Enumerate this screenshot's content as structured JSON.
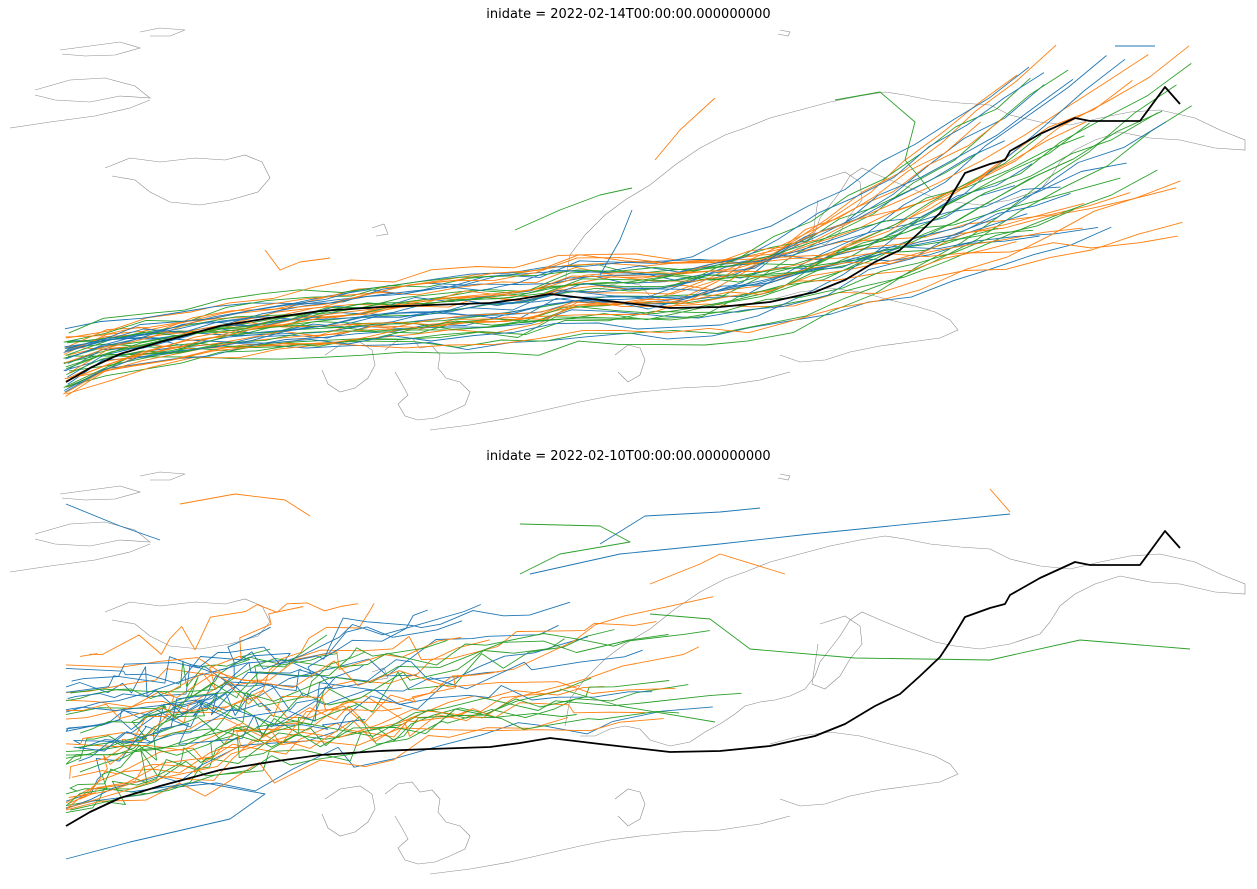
{
  "panels": [
    {
      "title": "inidate = 2022-02-14T00:00:00.000000000"
    },
    {
      "title": "inidate = 2022-02-10T00:00:00.000000000"
    }
  ],
  "colors": {
    "member_colors": [
      "#1f77b4",
      "#ff7f0e",
      "#2ca02c"
    ],
    "observed_track": "#000000",
    "coastline": "#8c8c8c"
  },
  "legend": null
}
